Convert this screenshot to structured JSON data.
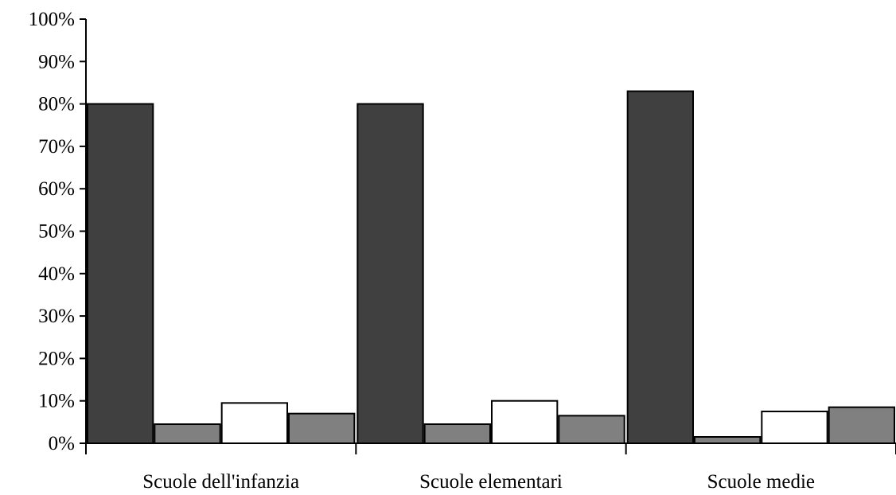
{
  "chart_data": {
    "type": "bar",
    "title": "",
    "xlabel": "",
    "ylabel": "",
    "ylim": [
      0,
      100
    ],
    "y_ticks": [
      "0%",
      "10%",
      "20%",
      "30%",
      "40%",
      "50%",
      "60%",
      "70%",
      "80%",
      "90%",
      "100%"
    ],
    "y_tick_values": [
      0,
      10,
      20,
      30,
      40,
      50,
      60,
      70,
      80,
      90,
      100
    ],
    "categories": [
      "Scuole dell'infanzia",
      "Scuole elementari",
      "Scuole medie"
    ],
    "series": [
      {
        "values": [
          80,
          80,
          83
        ],
        "color": "#404040"
      },
      {
        "values": [
          4.5,
          4.5,
          1.5
        ],
        "color": "#808080"
      },
      {
        "values": [
          9.5,
          10,
          7.5
        ],
        "color": "#ffffff"
      },
      {
        "values": [
          7,
          6.5,
          8.5
        ],
        "color": "#808080"
      }
    ],
    "grid": false,
    "legend": "none"
  }
}
